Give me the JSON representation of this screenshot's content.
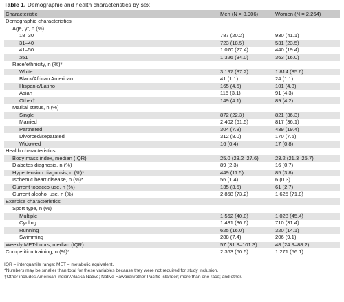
{
  "title": {
    "bold": "Table 1.",
    "rest": " Demographic and health characteristics by sex"
  },
  "headers": {
    "characteristic": "Characteristic",
    "men": "Men (N = 3,906)",
    "women": "Women (N = 2,264)"
  },
  "rows": [
    {
      "type": "section",
      "label": "Demographic characteristics"
    },
    {
      "type": "sub",
      "label": "Age, yr, n (%)"
    },
    {
      "type": "row",
      "label": "18–30",
      "men": "787 (20.2)",
      "women": "930 (41.1)"
    },
    {
      "type": "row",
      "label": "31–40",
      "men": "723 (18.5)",
      "women": "531 (23.5)"
    },
    {
      "type": "row",
      "label": "41–50",
      "men": "1,070 (27.4)",
      "women": "440 (19.4)"
    },
    {
      "type": "row",
      "label": "≥51",
      "men": "1,326 (34.0)",
      "women": "363 (16.0)"
    },
    {
      "type": "sub",
      "label": "Race/ethnicity, n (%)*"
    },
    {
      "type": "row",
      "label": "White",
      "men": "3,197 (87.2)",
      "women": "1,814 (85.6)"
    },
    {
      "type": "row",
      "label": "Black/African American",
      "men": "41 (1.1)",
      "women": "24 (1.1)"
    },
    {
      "type": "row",
      "label": "Hispanic/Latino",
      "men": "165 (4.5)",
      "women": "101 (4.8)"
    },
    {
      "type": "row",
      "label": "Asian",
      "men": "115 (3.1)",
      "women": "91 (4.3)"
    },
    {
      "type": "row",
      "label": "Other†",
      "men": "149 (4.1)",
      "women": "89 (4.2)"
    },
    {
      "type": "sub",
      "label": "Marital status, n (%)"
    },
    {
      "type": "row",
      "label": "Single",
      "men": "872 (22.3)",
      "women": "821 (36.3)"
    },
    {
      "type": "row",
      "label": "Married",
      "men": "2,402 (61.5)",
      "women": "817 (36.1)"
    },
    {
      "type": "row",
      "label": "Partnered",
      "men": "304 (7.8)",
      "women": "439 (19.4)"
    },
    {
      "type": "row",
      "label": "Divorced/separated",
      "men": "312 (8.0)",
      "women": "170 (7.5)"
    },
    {
      "type": "row",
      "label": "Widowed",
      "men": "16 (0.4)",
      "women": "17 (0.8)"
    },
    {
      "type": "section",
      "label": "Health characteristics"
    },
    {
      "type": "row1",
      "label": "Body mass index, median (IQR)",
      "men": "25.0 (23.2–27.6)",
      "women": "23.2 (21.3–25.7)"
    },
    {
      "type": "row1",
      "label": "Diabetes diagnosis, n (%)",
      "men": "89 (2.3)",
      "women": "16 (0.7)"
    },
    {
      "type": "row1",
      "label": "Hypertension diagnosis, n (%)*",
      "men": "449 (11.5)",
      "women": "85 (3.8)"
    },
    {
      "type": "row1",
      "label": "Ischemic heart disease, n (%)*",
      "men": "56 (1.4)",
      "women": "6 (0.3)"
    },
    {
      "type": "row1",
      "label": "Current tobacco use, n (%)",
      "men": "135 (3.5)",
      "women": "61 (2.7)"
    },
    {
      "type": "row1",
      "label": "Current alcohol use, n (%)",
      "men": "2,858 (73.2)",
      "women": "1,625 (71.8)"
    },
    {
      "type": "section",
      "label": "Exercise characteristics"
    },
    {
      "type": "sub",
      "label": "Sport type, n (%)"
    },
    {
      "type": "row",
      "label": "Multiple",
      "men": "1,562 (40.0)",
      "women": "1,028 (45.4)"
    },
    {
      "type": "row",
      "label": "Cycling",
      "men": "1,431 (36.6)",
      "women": "710 (31.4)"
    },
    {
      "type": "row",
      "label": "Running",
      "men": "625 (16.0)",
      "women": "320 (14.1)"
    },
    {
      "type": "row",
      "label": "Swimming",
      "men": "288 (7.4)",
      "women": "206 (9.1)"
    },
    {
      "type": "row0",
      "label": "Weekly MET-hours, median (IQR)",
      "men": "57 (31.8–101.3)",
      "women": "48 (24.9–88.2)"
    },
    {
      "type": "row0",
      "label": "Competition training, n (%)*",
      "men": "2,363 (60.5)",
      "women": "1,271 (56.1)"
    }
  ],
  "footnotes": [
    "IQR = interquartile range; MET = metabolic equivalent.",
    "*Numbers may be smaller than total for these variables because they were not required for study inclusion.",
    "†Other includes American Indian/Alaska Native; Native Hawaiian/other Pacific Islander; more than one race; and other."
  ]
}
